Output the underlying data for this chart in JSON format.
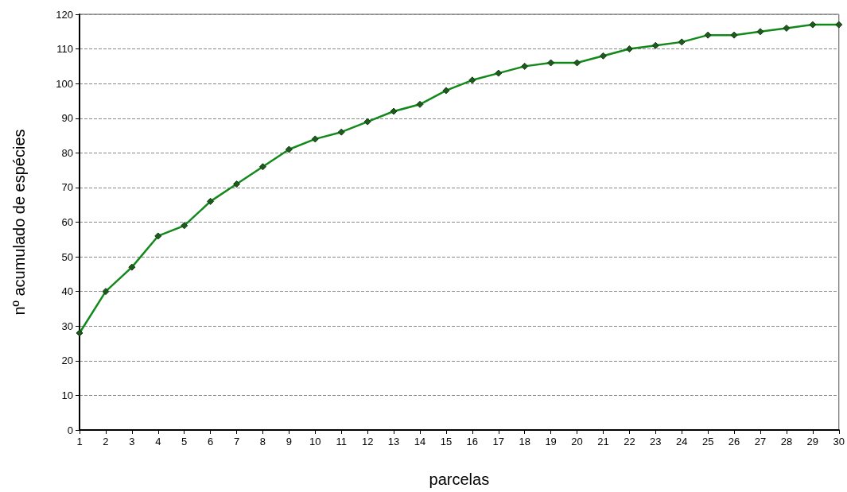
{
  "chart_data": {
    "type": "line",
    "xlabel": "parcelas",
    "ylabel": "nº acumulado de espécies",
    "x": [
      1,
      2,
      3,
      4,
      5,
      6,
      7,
      8,
      9,
      10,
      11,
      12,
      13,
      14,
      15,
      16,
      17,
      18,
      19,
      20,
      21,
      22,
      23,
      24,
      25,
      26,
      27,
      28,
      29,
      30
    ],
    "series": [
      {
        "color": "#12891a",
        "values": [
          28,
          40,
          47,
          56,
          59,
          66,
          71,
          76,
          81,
          84,
          86,
          89,
          92,
          94,
          98,
          101,
          103,
          105,
          106,
          106,
          108,
          110,
          111,
          112,
          114,
          114,
          115,
          116,
          117,
          117
        ]
      }
    ],
    "xlim": [
      1,
      30
    ],
    "xticks": [
      1,
      2,
      3,
      4,
      5,
      6,
      7,
      8,
      9,
      10,
      11,
      12,
      13,
      14,
      15,
      16,
      17,
      18,
      19,
      20,
      21,
      22,
      23,
      24,
      25,
      26,
      27,
      28,
      29,
      30
    ],
    "ylim": [
      0,
      120
    ],
    "yticks": [
      0,
      10,
      20,
      30,
      40,
      50,
      60,
      70,
      80,
      90,
      100,
      110,
      120
    ],
    "grid": "y",
    "marker": "diamond",
    "line_style": "solid"
  }
}
